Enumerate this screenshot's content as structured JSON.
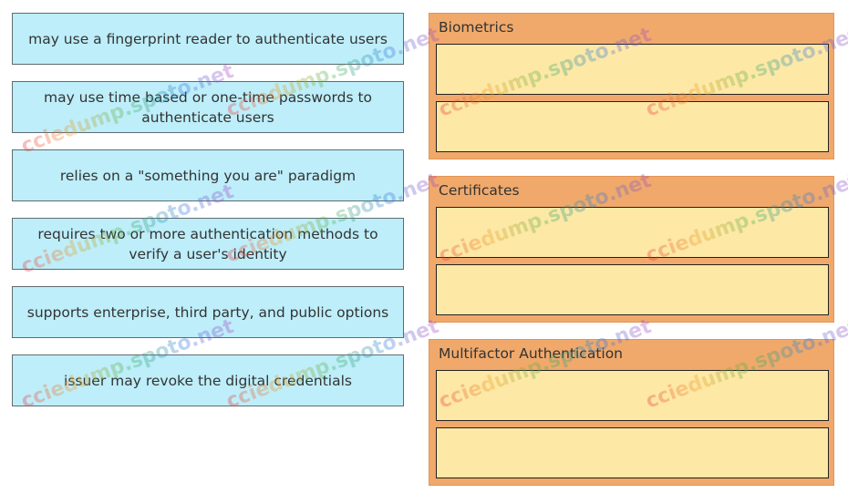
{
  "items": [
    {
      "label": "may use a fingerprint reader to authenticate users"
    },
    {
      "label": "may use time based or one-time passwords to authenticate users"
    },
    {
      "label": "relies on a \"something you are\" paradigm"
    },
    {
      "label": "requires two or more authentication methods to verify a user's identity"
    },
    {
      "label": "supports enterprise, third party, and public options"
    },
    {
      "label": "issuer may revoke the digital credentials"
    }
  ],
  "categories": [
    {
      "title": "Biometrics"
    },
    {
      "title": "Certificates"
    },
    {
      "title": "Multifactor Authentication"
    }
  ],
  "watermark": {
    "text": "ccie​dump.spoto.net"
  },
  "colors": {
    "item_bg": "#bdeefa",
    "category_bg": "#f0a96b",
    "slot_bg": "#fde8a6"
  }
}
